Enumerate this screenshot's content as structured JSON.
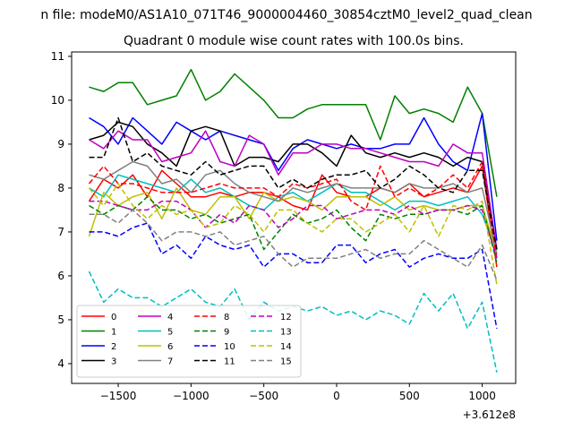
{
  "chart_data": {
    "type": "line",
    "suptitle": "n file: modeM0/AS1A10_071T46_9000004460_30854cztM0_level2_quad_clean",
    "title": "Quadrant 0 module wise count rates with 100.0s bins.",
    "xlabel": "",
    "ylabel": "",
    "x_offset_label": "+3.612e8",
    "xlim": [
      -1820,
      1230
    ],
    "ylim": [
      3.55,
      11.1
    ],
    "xticks": [
      -1500,
      -1000,
      -500,
      0,
      500,
      1000
    ],
    "xtick_labels": [
      "−1500",
      "−1000",
      "−500",
      "0",
      "500",
      "1000"
    ],
    "yticks": [
      4,
      5,
      6,
      7,
      8,
      9,
      10,
      11
    ],
    "ytick_labels": [
      "4",
      "5",
      "6",
      "7",
      "8",
      "9",
      "10",
      "11"
    ],
    "grid": false,
    "legend": {
      "placement": "lower-left",
      "columns": 4
    },
    "x": [
      -1700,
      -1600,
      -1500,
      -1400,
      -1300,
      -1200,
      -1100,
      -1000,
      -900,
      -800,
      -700,
      -600,
      -500,
      -400,
      -300,
      -200,
      -100,
      0,
      100,
      200,
      300,
      400,
      500,
      600,
      700,
      800,
      900,
      1000,
      1100
    ],
    "series": [
      {
        "name": "0",
        "color": "#ff0000",
        "dash": "solid",
        "values": [
          7.7,
          8.2,
          8.0,
          8.3,
          7.8,
          8.4,
          8.1,
          7.8,
          7.8,
          7.9,
          7.8,
          7.9,
          7.9,
          7.8,
          7.6,
          7.5,
          8.3,
          7.9,
          7.8,
          7.8,
          8.0,
          7.9,
          8.1,
          7.8,
          7.9,
          8.0,
          7.9,
          8.5,
          6.2
        ]
      },
      {
        "name": "1",
        "color": "#008000",
        "dash": "solid",
        "values": [
          10.3,
          10.2,
          10.4,
          10.4,
          9.9,
          10.0,
          10.1,
          10.7,
          10.0,
          10.2,
          10.6,
          10.3,
          10.0,
          9.6,
          9.6,
          9.8,
          9.9,
          9.9,
          9.9,
          9.9,
          9.1,
          10.1,
          9.7,
          9.8,
          9.7,
          9.5,
          10.3,
          9.7,
          7.8
        ]
      },
      {
        "name": "2",
        "color": "#0000ff",
        "dash": "solid",
        "values": [
          9.6,
          9.4,
          9.0,
          9.6,
          9.3,
          9.0,
          9.5,
          9.3,
          9.1,
          9.3,
          9.2,
          9.1,
          9.0,
          8.4,
          8.9,
          9.1,
          9.0,
          8.9,
          9.0,
          8.9,
          8.9,
          9.0,
          9.0,
          9.6,
          9.0,
          8.6,
          8.4,
          9.7,
          6.8
        ]
      },
      {
        "name": "3",
        "color": "#000000",
        "dash": "solid",
        "values": [
          9.1,
          9.2,
          9.5,
          9.4,
          9.0,
          8.8,
          8.5,
          9.3,
          9.4,
          9.3,
          8.5,
          8.7,
          8.7,
          8.6,
          9.0,
          9.0,
          8.8,
          8.5,
          9.2,
          8.8,
          8.7,
          8.8,
          8.7,
          8.8,
          8.7,
          8.5,
          8.7,
          8.6,
          6.6
        ]
      },
      {
        "name": "4",
        "color": "#bf00bf",
        "dash": "solid",
        "values": [
          9.1,
          8.9,
          9.3,
          9.1,
          9.1,
          8.6,
          8.7,
          8.8,
          9.3,
          8.6,
          8.5,
          9.2,
          9.0,
          8.3,
          8.8,
          8.8,
          9.0,
          9.0,
          8.9,
          8.9,
          8.8,
          8.7,
          8.6,
          8.6,
          8.5,
          9.0,
          8.8,
          8.8,
          6.6
        ]
      },
      {
        "name": "5",
        "color": "#00bfbf",
        "dash": "solid",
        "values": [
          8.0,
          7.8,
          8.3,
          8.2,
          8.1,
          8.0,
          7.9,
          8.2,
          7.9,
          8.0,
          7.8,
          7.6,
          7.5,
          7.8,
          7.9,
          7.7,
          7.9,
          8.1,
          7.9,
          7.9,
          7.7,
          7.5,
          7.7,
          7.7,
          7.6,
          7.7,
          7.8,
          7.4,
          6.5
        ]
      },
      {
        "name": "6",
        "color": "#bfbf00",
        "dash": "solid",
        "values": [
          6.9,
          7.9,
          7.6,
          7.8,
          7.9,
          7.3,
          8.0,
          7.5,
          7.4,
          7.8,
          7.8,
          7.3,
          7.9,
          7.7,
          7.8,
          7.7,
          7.5,
          7.8,
          7.8,
          7.8,
          7.6,
          7.8,
          7.5,
          7.6,
          7.5,
          7.5,
          7.6,
          7.6,
          6.5
        ]
      },
      {
        "name": "7",
        "color": "#808080",
        "dash": "solid",
        "values": [
          8.3,
          8.2,
          8.4,
          8.6,
          8.5,
          8.1,
          8.2,
          7.9,
          8.3,
          8.4,
          8.1,
          7.9,
          7.8,
          7.7,
          8.0,
          7.9,
          8.0,
          8.1,
          8.0,
          8.0,
          8.0,
          7.9,
          8.1,
          8.0,
          8.0,
          8.1,
          7.9,
          8.0,
          6.5
        ]
      },
      {
        "name": "8",
        "color": "#ff0000",
        "dash": "dashed",
        "values": [
          8.1,
          8.5,
          8.1,
          8.1,
          8.0,
          7.9,
          7.9,
          7.9,
          8.0,
          8.1,
          8.0,
          8.0,
          8.0,
          7.8,
          8.1,
          8.0,
          8.1,
          8.2,
          7.7,
          7.5,
          8.5,
          7.8,
          8.0,
          7.8,
          8.0,
          8.3,
          8.0,
          8.6,
          6.4
        ]
      },
      {
        "name": "9",
        "color": "#008000",
        "dash": "dashed",
        "values": [
          7.6,
          7.4,
          7.6,
          7.5,
          7.8,
          7.5,
          7.5,
          7.3,
          7.4,
          7.2,
          7.3,
          7.4,
          6.6,
          7.0,
          7.4,
          7.2,
          7.3,
          7.5,
          7.1,
          6.8,
          7.4,
          7.3,
          7.4,
          7.4,
          7.5,
          7.5,
          7.4,
          7.6,
          6.3
        ]
      },
      {
        "name": "10",
        "color": "#0000ff",
        "dash": "dashed",
        "values": [
          7.0,
          7.0,
          6.9,
          7.1,
          7.2,
          6.5,
          6.7,
          6.4,
          6.9,
          6.7,
          6.6,
          6.7,
          6.2,
          6.5,
          6.5,
          6.3,
          6.3,
          6.7,
          6.7,
          6.3,
          6.5,
          6.6,
          6.2,
          6.4,
          6.5,
          6.4,
          6.4,
          6.6,
          4.8
        ]
      },
      {
        "name": "11",
        "color": "#000000",
        "dash": "dashed",
        "values": [
          8.7,
          8.7,
          9.6,
          8.6,
          8.8,
          8.5,
          8.4,
          8.3,
          8.6,
          8.3,
          8.4,
          8.5,
          8.5,
          8.0,
          8.2,
          8.0,
          8.2,
          8.3,
          8.3,
          8.4,
          8.0,
          8.2,
          8.5,
          8.3,
          8.0,
          7.9,
          8.4,
          8.4,
          6.6
        ]
      },
      {
        "name": "12",
        "color": "#bf00bf",
        "dash": "dashed",
        "values": [
          7.7,
          7.7,
          7.6,
          7.5,
          7.5,
          7.7,
          7.7,
          7.5,
          7.1,
          7.4,
          7.2,
          7.6,
          7.5,
          7.1,
          7.3,
          7.6,
          7.6,
          7.3,
          7.4,
          7.5,
          7.5,
          7.4,
          7.6,
          7.4,
          7.5,
          7.5,
          7.6,
          7.5,
          6.4
        ]
      },
      {
        "name": "13",
        "color": "#00bfbf",
        "dash": "dashed",
        "values": [
          6.1,
          5.4,
          5.7,
          5.5,
          5.5,
          5.3,
          5.5,
          5.7,
          5.4,
          5.3,
          5.7,
          5.0,
          5.4,
          5.2,
          5.3,
          5.2,
          5.3,
          5.1,
          5.2,
          5.0,
          5.2,
          5.1,
          4.9,
          5.6,
          5.2,
          5.6,
          4.8,
          5.4,
          3.8
        ]
      },
      {
        "name": "14",
        "color": "#bfbf00",
        "dash": "dashed",
        "values": [
          8.0,
          7.6,
          8.1,
          7.6,
          7.3,
          7.6,
          7.4,
          7.5,
          7.1,
          7.2,
          7.6,
          7.4,
          7.0,
          7.5,
          7.5,
          7.2,
          7.0,
          7.3,
          7.3,
          7.0,
          7.2,
          7.4,
          7.0,
          7.6,
          6.9,
          7.6,
          7.5,
          7.7,
          5.8
        ]
      },
      {
        "name": "15",
        "color": "#808080",
        "dash": "dashed",
        "values": [
          7.4,
          7.4,
          7.2,
          7.5,
          7.2,
          6.8,
          7.0,
          7.0,
          6.9,
          7.0,
          6.7,
          6.8,
          6.9,
          6.5,
          6.2,
          6.4,
          6.4,
          6.4,
          6.5,
          6.6,
          6.4,
          6.5,
          6.5,
          6.8,
          6.6,
          6.4,
          6.2,
          6.7,
          5.9
        ]
      }
    ]
  }
}
